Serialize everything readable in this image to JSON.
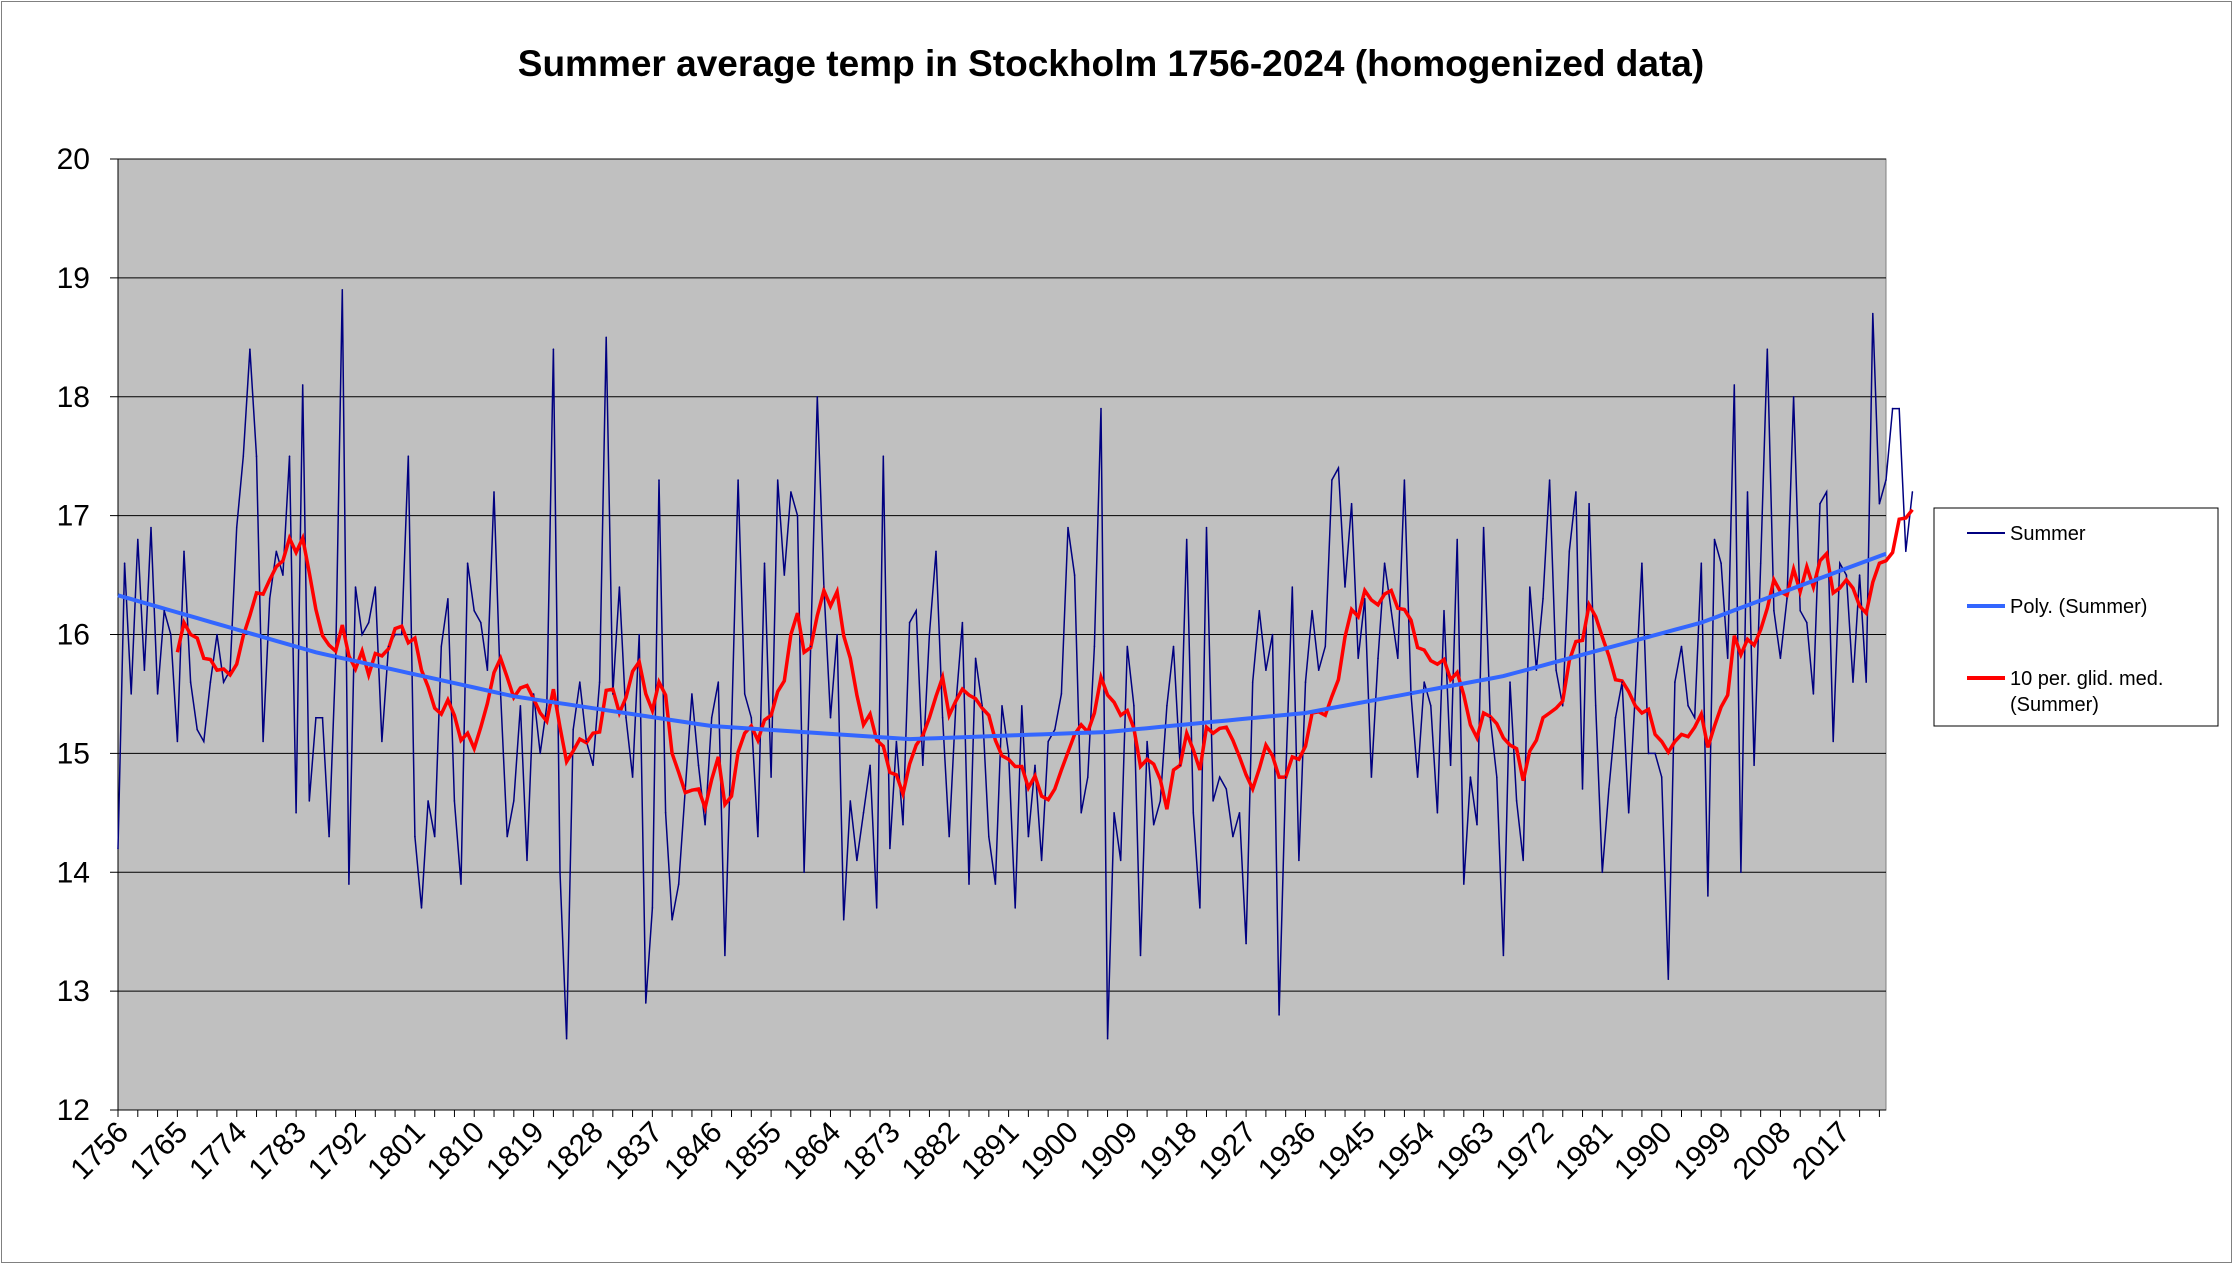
{
  "chart_data": {
    "type": "line",
    "title": "Summer average temp in Stockholm 1756-2024 (homogenized data)",
    "xlabel": "",
    "ylabel": "",
    "ylim": [
      12,
      20
    ],
    "yticks": [
      12,
      13,
      14,
      15,
      16,
      17,
      18,
      19,
      20
    ],
    "x_range": [
      1756,
      2024
    ],
    "x_tick_labels": [
      "1756",
      "1765",
      "1774",
      "1783",
      "1792",
      "1801",
      "1810",
      "1819",
      "1828",
      "1837",
      "1846",
      "1855",
      "1864",
      "1873",
      "1882",
      "1891",
      "1900",
      "1909",
      "1918",
      "1927",
      "1936",
      "1945",
      "1954",
      "1963",
      "1972",
      "1981",
      "1990",
      "1999",
      "2008",
      "2017"
    ],
    "grid": "horizontal",
    "plot_background": "#c0c0c0",
    "legend_position": "right",
    "series": [
      {
        "name": "Summer",
        "color": "#000080",
        "x_start": 1756,
        "values": [
          14.2,
          16.6,
          15.5,
          16.8,
          15.7,
          16.9,
          15.5,
          16.2,
          16.0,
          15.1,
          16.7,
          15.6,
          15.2,
          15.1,
          15.6,
          16.0,
          15.6,
          15.7,
          16.9,
          17.5,
          18.4,
          17.5,
          15.1,
          16.3,
          16.7,
          16.5,
          17.5,
          14.5,
          18.1,
          14.6,
          15.3,
          15.3,
          14.3,
          15.8,
          18.9,
          13.9,
          16.4,
          16.0,
          16.1,
          16.4,
          15.1,
          15.9,
          16.0,
          16.0,
          17.5,
          14.3,
          13.7,
          14.6,
          14.3,
          15.9,
          16.3,
          14.6,
          13.9,
          16.6,
          16.2,
          16.1,
          15.7,
          17.2,
          15.5,
          14.3,
          14.6,
          15.4,
          14.1,
          15.5,
          15.0,
          15.4,
          18.4,
          14.0,
          12.6,
          15.2,
          15.6,
          15.1,
          14.9,
          15.6,
          18.5,
          15.5,
          16.4,
          15.3,
          14.8,
          16.0,
          12.9,
          13.7,
          17.3,
          14.5,
          13.6,
          13.9,
          14.7,
          15.5,
          14.9,
          14.4,
          15.3,
          15.6,
          13.3,
          15.2,
          17.3,
          15.5,
          15.3,
          14.3,
          16.6,
          14.8,
          17.3,
          16.5,
          17.2,
          17.0,
          14.0,
          15.9,
          18.0,
          16.4,
          15.3,
          16.0,
          13.6,
          14.6,
          14.1,
          14.5,
          14.9,
          13.7,
          17.5,
          14.2,
          15.1,
          14.4,
          16.1,
          16.2,
          14.9,
          16.0,
          16.7,
          15.3,
          14.3,
          15.4,
          16.1,
          13.9,
          15.8,
          15.4,
          14.3,
          13.9,
          15.4,
          15.0,
          13.7,
          15.4,
          14.3,
          14.9,
          14.1,
          15.1,
          15.2,
          15.5,
          16.9,
          16.5,
          14.5,
          14.8,
          15.9,
          17.9,
          12.6,
          14.5,
          14.1,
          15.9,
          15.4,
          13.3,
          15.1,
          14.4,
          14.6,
          15.4,
          15.9,
          14.9,
          16.8,
          14.5,
          13.7,
          16.9,
          14.6,
          14.8,
          14.7,
          14.3,
          14.5,
          13.4,
          15.6,
          16.2,
          15.7,
          16.0,
          12.8,
          14.8,
          16.4,
          14.1,
          15.6,
          16.2,
          15.7,
          15.9,
          17.3,
          17.4,
          16.4,
          17.1,
          15.8,
          16.3,
          14.8,
          15.8,
          16.6,
          16.2,
          15.8,
          17.3,
          15.5,
          14.8,
          15.6,
          15.4,
          14.5,
          16.2,
          14.9,
          16.8,
          13.9,
          14.8,
          14.4,
          16.9,
          15.3,
          14.8,
          13.3,
          15.6,
          14.6,
          14.1,
          16.4,
          15.7,
          16.3,
          17.3,
          15.7,
          15.4,
          16.7,
          17.2,
          14.7,
          17.1,
          15.4,
          14.0,
          14.7,
          15.3,
          15.6,
          14.5,
          15.5,
          16.6,
          15.0,
          15.0,
          14.8,
          13.1,
          15.6,
          15.9,
          15.4,
          15.3,
          16.6,
          13.8,
          16.8,
          16.6,
          15.8,
          18.1,
          14.0,
          17.2,
          14.9,
          16.6,
          18.4,
          16.2,
          15.8,
          16.3,
          18.0,
          16.2,
          16.1,
          15.5,
          17.1,
          17.2,
          15.1,
          16.6,
          16.5,
          15.6,
          16.5,
          15.6,
          18.7,
          17.1,
          17.3,
          17.9,
          17.9,
          16.7,
          17.2
        ]
      },
      {
        "name": "Poly. (Summer)",
        "color": "#3366ff",
        "fit": "polynomial, order 2",
        "x": [
          1756,
          1786,
          1816,
          1846,
          1876,
          1906,
          1936,
          1966,
          1996,
          2024
        ],
        "values": [
          16.33,
          15.85,
          15.48,
          15.23,
          15.12,
          15.18,
          15.34,
          15.65,
          16.1,
          16.68
        ]
      },
      {
        "name": "10 per. glid. med. (Summer)",
        "legend_lines": [
          "10 per. glid. med.",
          "(Summer)"
        ],
        "color": "#ff0000",
        "x_start": 1765,
        "window": 10
      }
    ]
  }
}
